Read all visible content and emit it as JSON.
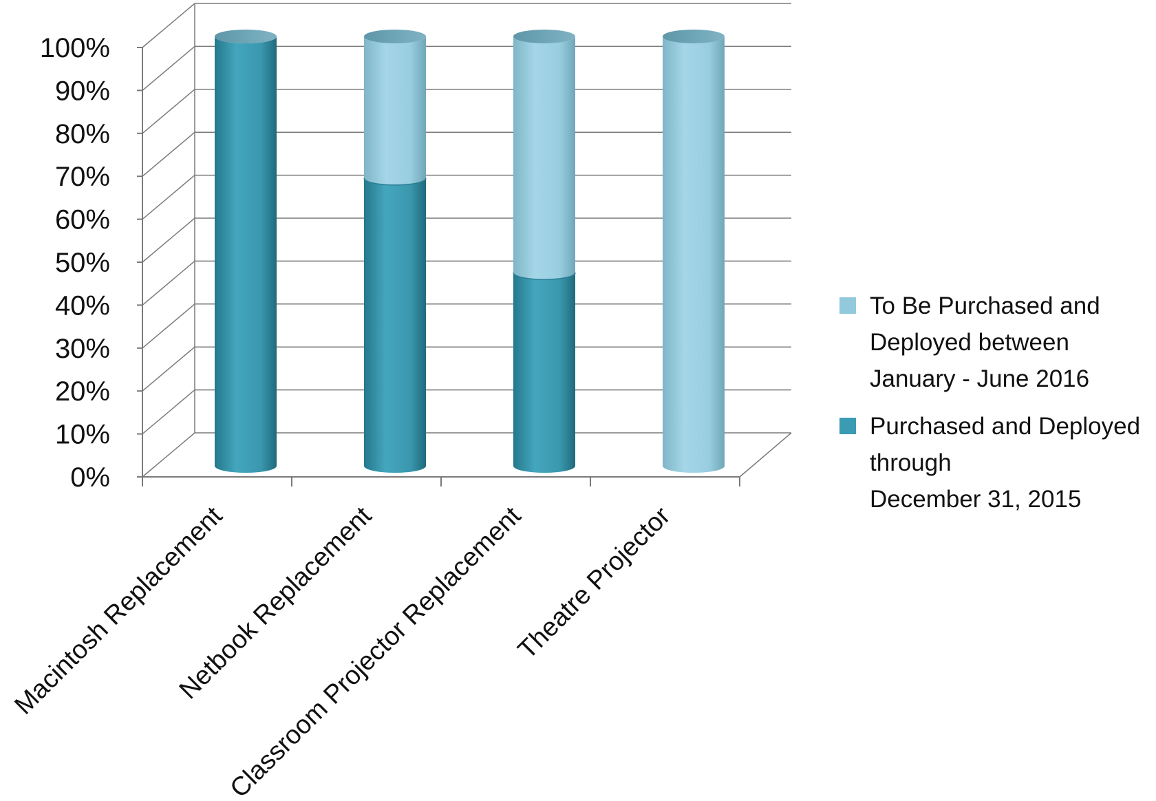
{
  "chart_data": {
    "type": "bar",
    "stacked": true,
    "style": "3d-cylinder",
    "categories": [
      "Macintosh Replacement",
      "Netbook Replacement",
      "Classroom Projector Replacement",
      "Theatre Projector"
    ],
    "series": [
      {
        "name": "Purchased and Deployed through\nDecember 31, 2015",
        "color": "#3a9bb2",
        "values": [
          100,
          67,
          45,
          0
        ]
      },
      {
        "name": "To Be Purchased and Deployed between January - June 2016",
        "color": "#92c9dc",
        "values": [
          0,
          33,
          55,
          100
        ]
      }
    ],
    "yticks": [
      "0%",
      "10%",
      "20%",
      "30%",
      "40%",
      "50%",
      "60%",
      "70%",
      "80%",
      "90%",
      "100%"
    ],
    "ylim": [
      0,
      100
    ],
    "grid": true,
    "legend_position": "right",
    "legend": [
      {
        "label": "To Be Purchased and Deployed between January - June 2016",
        "color": "#92c9dc"
      },
      {
        "label": "Purchased and Deployed through\nDecember 31, 2015",
        "color": "#3a9bb2"
      }
    ]
  }
}
